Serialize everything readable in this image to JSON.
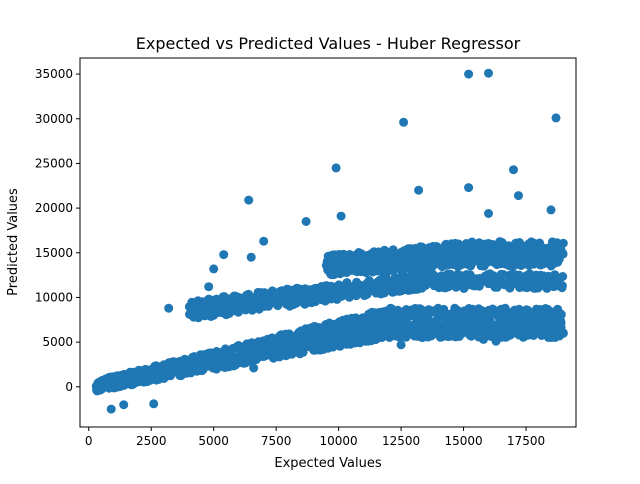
{
  "chart_data": {
    "type": "scatter",
    "title": "Expected vs Predicted Values - Huber Regressor",
    "xlabel": "Expected Values",
    "ylabel": "Predicted Values",
    "xlim": [
      -350,
      19500
    ],
    "ylim": [
      -4500,
      36800
    ],
    "xticks": [
      0,
      2500,
      5000,
      7500,
      10000,
      12500,
      15000,
      17500
    ],
    "xtick_labels": [
      "0",
      "2500",
      "5000",
      "7500",
      "10000",
      "12500",
      "15000",
      "17500"
    ],
    "yticks": [
      0,
      5000,
      10000,
      15000,
      20000,
      25000,
      30000,
      35000
    ],
    "ytick_labels": [
      "0",
      "5000",
      "10000",
      "15000",
      "20000",
      "25000",
      "30000",
      "35000"
    ],
    "grid": false,
    "marker_color": "#1f77b4",
    "notable_points": [
      [
        15200,
        35000
      ],
      [
        16000,
        35100
      ],
      [
        18700,
        30100
      ],
      [
        12600,
        29600
      ],
      [
        9900,
        24500
      ],
      [
        17000,
        24300
      ],
      [
        15200,
        22300
      ],
      [
        13200,
        22000
      ],
      [
        17200,
        21400
      ],
      [
        6400,
        20900
      ],
      [
        10100,
        19100
      ],
      [
        8700,
        18500
      ],
      [
        16000,
        19400
      ],
      [
        18500,
        19800
      ],
      [
        6500,
        14500
      ],
      [
        5400,
        14800
      ],
      [
        6600,
        2100
      ],
      [
        1400,
        -2000
      ],
      [
        2600,
        -1900
      ],
      [
        900,
        -2500
      ],
      [
        17500,
        5900
      ],
      [
        16300,
        5100
      ],
      [
        15800,
        5300
      ],
      [
        12500,
        4700
      ],
      [
        4800,
        11200
      ],
      [
        5000,
        13200
      ],
      [
        3200,
        8800
      ],
      [
        7000,
        16300
      ]
    ],
    "cloud_bands": [
      {
        "x": [
          300,
          19000
        ],
        "y_lo": [
          -500,
          5500
        ],
        "y_hi": [
          600,
          8500
        ]
      },
      {
        "x": [
          4000,
          19000
        ],
        "y_lo": [
          7500,
          11000
        ],
        "y_hi": [
          9500,
          12500
        ]
      },
      {
        "x": [
          9500,
          19000
        ],
        "y_lo": [
          12500,
          13500
        ],
        "y_hi": [
          14500,
          16000
        ]
      }
    ]
  }
}
